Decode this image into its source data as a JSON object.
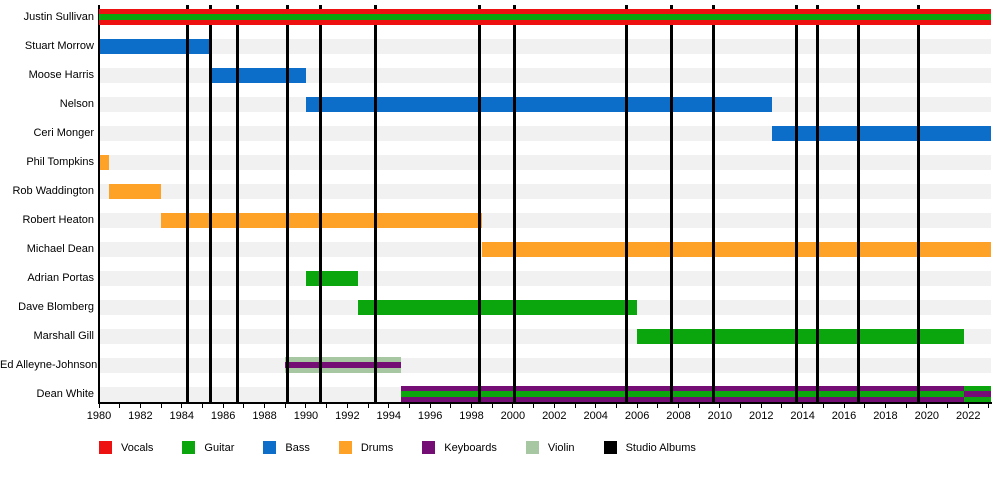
{
  "legend": [
    {
      "label": "Vocals",
      "role": "vocals"
    },
    {
      "label": "Guitar",
      "role": "guitar"
    },
    {
      "label": "Bass",
      "role": "bass"
    },
    {
      "label": "Drums",
      "role": "drums"
    },
    {
      "label": "Keyboards",
      "role": "keyboards"
    },
    {
      "label": "Violin",
      "role": "violin"
    },
    {
      "label": "Studio Albums",
      "role": "studio_albums"
    }
  ],
  "chart_data": {
    "type": "timeline",
    "x_domain": [
      1980,
      2023.1
    ],
    "x_tick_years": {
      "start": 1980,
      "end": 2023,
      "step": 1
    },
    "x_label_years": [
      1980,
      1982,
      1984,
      1986,
      1988,
      1990,
      1992,
      1994,
      1996,
      1998,
      2000,
      2002,
      2004,
      2006,
      2008,
      2010,
      2012,
      2014,
      2016,
      2018,
      2020,
      2022
    ],
    "grid": false,
    "legend_position": "bottom",
    "colors": {
      "vocals": "#ee1111",
      "guitar": "#0ba60e",
      "bass": "#0d6eca",
      "drums": "#fea227",
      "keyboards": "#740d74",
      "violin": "#a7c7a3",
      "studio_albums": "#000000",
      "row_track": "#f1f1f1"
    },
    "rows": [
      {
        "name": "Justin Sullivan",
        "bars": [
          {
            "start": 1980,
            "end": 2023.1,
            "role": "vocals",
            "stripe_role": "guitar"
          }
        ]
      },
      {
        "name": "Stuart Morrow",
        "bars": [
          {
            "start": 1980,
            "end": 1985.4,
            "role": "bass"
          }
        ]
      },
      {
        "name": "Moose Harris",
        "bars": [
          {
            "start": 1985.4,
            "end": 1990.0,
            "role": "bass"
          }
        ]
      },
      {
        "name": "Nelson",
        "bars": [
          {
            "start": 1990.0,
            "end": 2012.5,
            "role": "bass"
          }
        ]
      },
      {
        "name": "Ceri Monger",
        "bars": [
          {
            "start": 2012.5,
            "end": 2023.1,
            "role": "bass"
          }
        ]
      },
      {
        "name": "Phil Tompkins",
        "bars": [
          {
            "start": 1980,
            "end": 1980.5,
            "role": "drums"
          }
        ]
      },
      {
        "name": "Rob Waddington",
        "bars": [
          {
            "start": 1980.5,
            "end": 1983.0,
            "role": "drums"
          }
        ]
      },
      {
        "name": "Robert Heaton",
        "bars": [
          {
            "start": 1983.0,
            "end": 1998.5,
            "role": "drums"
          }
        ]
      },
      {
        "name": "Michael Dean",
        "bars": [
          {
            "start": 1998.5,
            "end": 2023.1,
            "role": "drums"
          }
        ]
      },
      {
        "name": "Adrian Portas",
        "bars": [
          {
            "start": 1990.0,
            "end": 1992.5,
            "role": "guitar"
          }
        ]
      },
      {
        "name": "Dave Blomberg",
        "bars": [
          {
            "start": 1992.5,
            "end": 2006.0,
            "role": "guitar"
          }
        ]
      },
      {
        "name": "Marshall Gill",
        "bars": [
          {
            "start": 2006.0,
            "end": 2021.8,
            "role": "guitar"
          }
        ]
      },
      {
        "name": "Ed Alleyne-Johnson",
        "bars": [
          {
            "start": 1989.0,
            "end": 1994.6,
            "role": "violin",
            "stripe_role": "keyboards"
          }
        ]
      },
      {
        "name": "Dean White",
        "bars": [
          {
            "start": 1994.6,
            "end": 2021.8,
            "role": "keyboards",
            "stripe_role": "guitar"
          },
          {
            "start": 2021.8,
            "end": 2023.1,
            "role": "guitar",
            "stripe_role": "keyboards"
          }
        ]
      }
    ],
    "album_marker_years": [
      1984.3,
      1985.4,
      1986.7,
      1989.1,
      1990.7,
      1993.35,
      1998.4,
      2000.1,
      2005.5,
      2007.65,
      2009.7,
      2013.7,
      2014.7,
      2016.7,
      2019.6
    ]
  }
}
